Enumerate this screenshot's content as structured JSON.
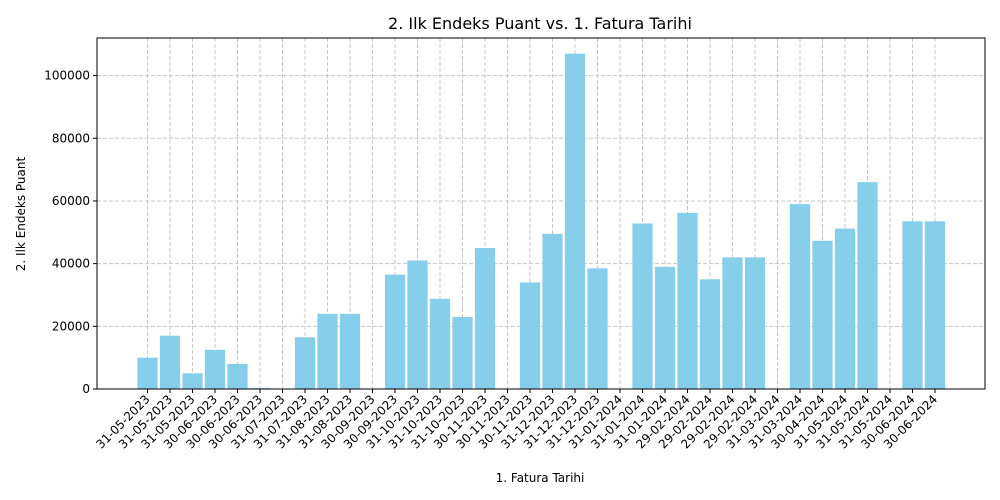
{
  "chart_data": {
    "type": "bar",
    "title": "2. Ilk Endeks Puant vs. 1. Fatura Tarihi",
    "xlabel": "1. Fatura Tarihi",
    "ylabel": "2. Ilk Endeks Puant",
    "ylim": [
      0,
      112000
    ],
    "yticks": [
      0,
      20000,
      40000,
      60000,
      80000,
      100000
    ],
    "grid": true,
    "bar_color": "#87ceeb",
    "grid_color": "#c8c8c8",
    "categories": [
      "31-05-2023",
      "31-05-2023",
      "31-05-2023",
      "30-06-2023",
      "30-06-2023",
      "30-06-2023",
      "31-07-2023",
      "31-07-2023",
      "31-08-2023",
      "31-08-2023",
      "30-09-2023",
      "30-09-2023",
      "31-10-2023",
      "31-10-2023",
      "31-10-2023",
      "30-11-2023",
      "30-11-2023",
      "30-11-2023",
      "31-12-2023",
      "31-12-2023",
      "31-12-2023",
      "31-01-2024",
      "31-01-2024",
      "31-01-2024",
      "29-02-2024",
      "29-02-2024",
      "29-02-2024",
      "29-02-2024",
      "31-03-2024",
      "31-03-2024",
      "30-04-2024",
      "31-05-2024",
      "31-05-2024",
      "31-05-2024",
      "30-06-2024",
      "30-06-2024"
    ],
    "values": [
      10000,
      17000,
      5000,
      12500,
      8000,
      300,
      0,
      16500,
      24000,
      24000,
      0,
      36500,
      41000,
      28800,
      23000,
      45000,
      0,
      34000,
      49500,
      107000,
      38500,
      0,
      52800,
      39000,
      56200,
      35000,
      42000,
      42000,
      0,
      59000,
      47300,
      51200,
      66000,
      0,
      53500,
      53500
    ]
  }
}
